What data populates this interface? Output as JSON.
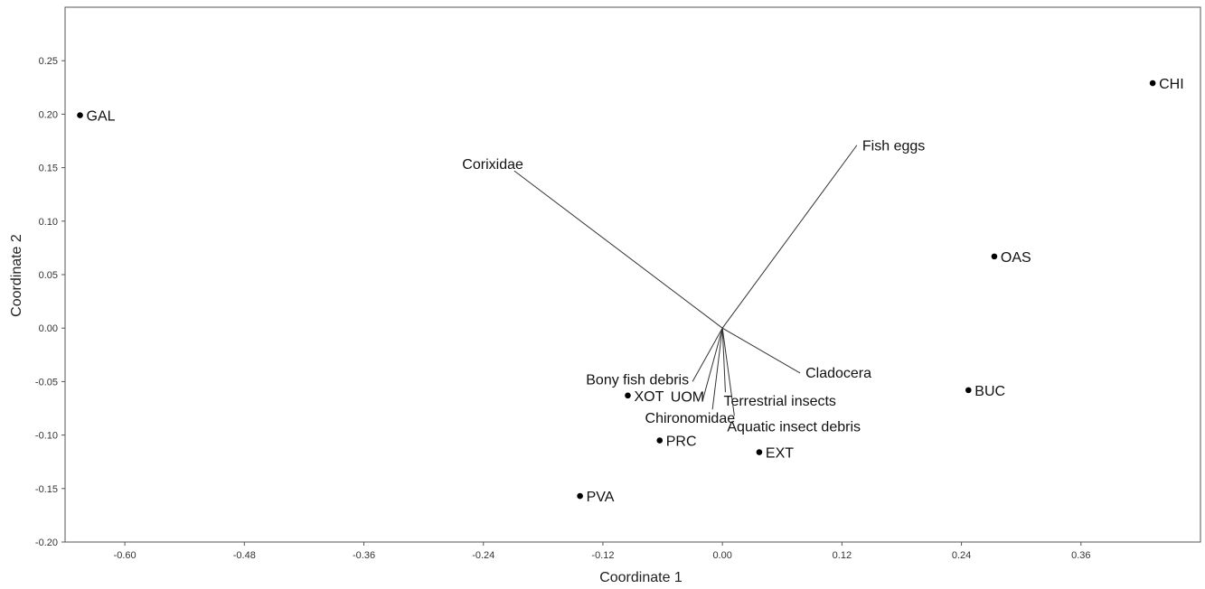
{
  "chart_data": {
    "type": "scatter",
    "xlabel": "Coordinate 1",
    "ylabel": "Coordinate 2",
    "xlim": [
      -0.66,
      0.48
    ],
    "ylim": [
      -0.2,
      0.3
    ],
    "xticks": [
      -0.6,
      -0.48,
      -0.36,
      -0.24,
      -0.12,
      0.0,
      0.12,
      0.24,
      0.36
    ],
    "yticks": [
      -0.2,
      -0.15,
      -0.1,
      -0.05,
      0.0,
      0.05,
      0.1,
      0.15,
      0.2,
      0.25
    ],
    "tick_format_decimals": 2,
    "grid": false,
    "colors": {
      "points": "#000000",
      "vectors": "#333333",
      "frame": "#555555"
    },
    "points": [
      {
        "label": "GAL",
        "x": -0.645,
        "y": 0.199
      },
      {
        "label": "CHI",
        "x": 0.432,
        "y": 0.229
      },
      {
        "label": "OAS",
        "x": 0.273,
        "y": 0.067
      },
      {
        "label": "BUC",
        "x": 0.247,
        "y": -0.058
      },
      {
        "label": "XOT",
        "x": -0.095,
        "y": -0.063
      },
      {
        "label": "PRC",
        "x": -0.063,
        "y": -0.105
      },
      {
        "label": "EXT",
        "x": 0.037,
        "y": -0.116
      },
      {
        "label": "PVA",
        "x": -0.143,
        "y": -0.157
      }
    ],
    "vectors": [
      {
        "label": "Fish eggs",
        "x": 0.135,
        "y": 0.171
      },
      {
        "label": "Corixidae",
        "x": -0.209,
        "y": 0.147
      },
      {
        "label": "Cladocera",
        "x": 0.078,
        "y": -0.042
      },
      {
        "label": "Bony fish debris",
        "x": -0.03,
        "y": -0.05
      },
      {
        "label": "UOM",
        "x": -0.02,
        "y": -0.068
      },
      {
        "label": "Chironomidae",
        "x": -0.01,
        "y": -0.076
      },
      {
        "label": "Terrestrial insects",
        "x": 0.003,
        "y": -0.06
      },
      {
        "label": "Aquatic insect debris",
        "x": 0.012,
        "y": -0.082
      }
    ]
  }
}
